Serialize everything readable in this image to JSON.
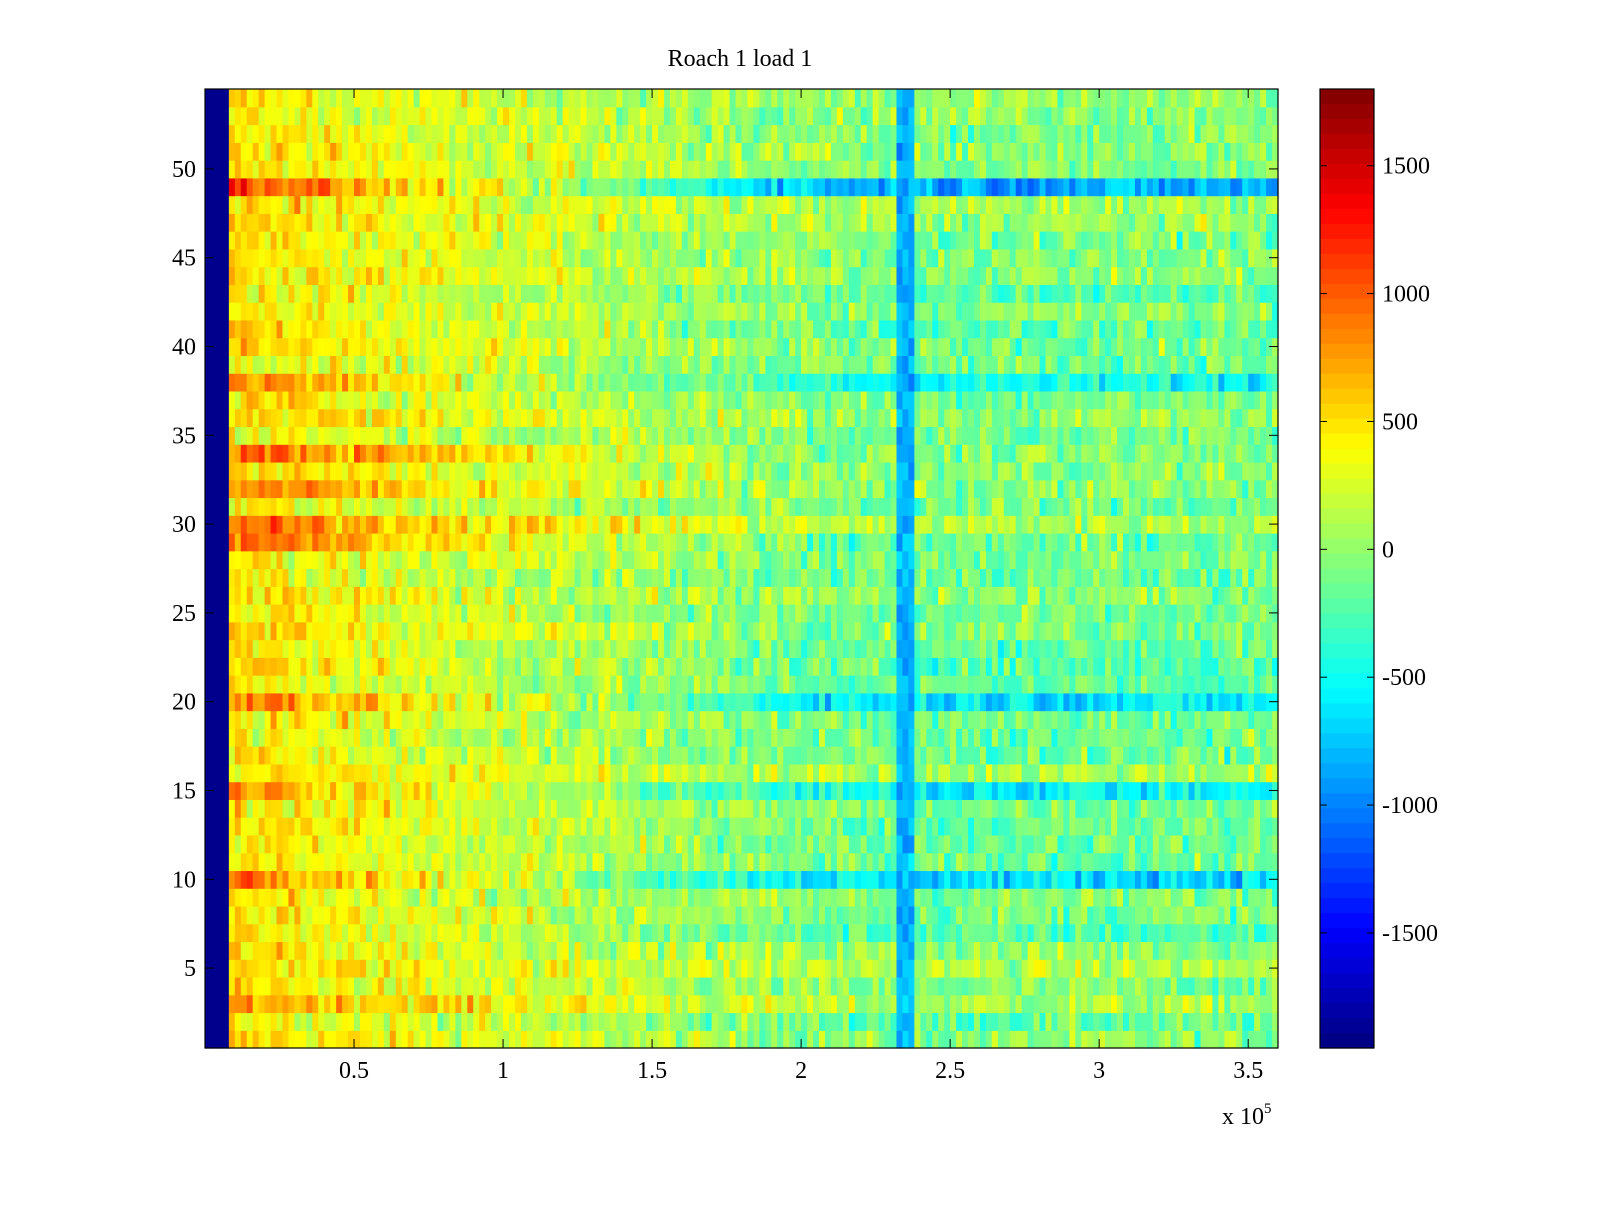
{
  "chart_data": {
    "type": "heatmap",
    "title": "Roach 1 load 1",
    "xlabel": "",
    "ylabel": "",
    "x_multiplier_label": {
      "base": "x 10",
      "exponent": "5"
    },
    "xlim": [
      0,
      3.6
    ],
    "x_scale_note": "values in units of 10^5",
    "ylim": [
      0.5,
      54.5
    ],
    "x_ticks": [
      0.5,
      1,
      1.5,
      2,
      2.5,
      3,
      3.5
    ],
    "x_tick_labels": [
      "0.5",
      "1",
      "1.5",
      "2",
      "2.5",
      "3",
      "3.5"
    ],
    "y_ticks": [
      5,
      10,
      15,
      20,
      25,
      30,
      35,
      40,
      45,
      50
    ],
    "y_tick_labels": [
      "5",
      "10",
      "15",
      "20",
      "25",
      "30",
      "35",
      "40",
      "45",
      "50"
    ],
    "rows": 54,
    "colorbar": {
      "colormap": "jet",
      "clim": [
        -1950,
        1800
      ],
      "ticks": [
        1500,
        1000,
        500,
        0,
        -500,
        -1000,
        -1500
      ],
      "tick_labels": [
        "1500",
        "1000",
        "500",
        "0",
        "-500",
        "-1000",
        "-1500"
      ]
    },
    "dark_edge_end_x": 0.08,
    "dark_edge_value": -1900,
    "stripe_column_x": 2.35,
    "stripe_value": -800,
    "row_profile_description": "Mean level per row decreases from left to right; selected rows are strongly elevated near the left edge.",
    "hot_rows": [
      {
        "row": 49,
        "left_value": 1400
      },
      {
        "row": 38,
        "left_value": 1050
      },
      {
        "row": 34,
        "left_value": 1100
      },
      {
        "row": 32,
        "left_value": 950
      },
      {
        "row": 30,
        "left_value": 1000
      },
      {
        "row": 29,
        "left_value": 1050
      },
      {
        "row": 20,
        "left_value": 1150
      },
      {
        "row": 15,
        "left_value": 1000
      },
      {
        "row": 10,
        "left_value": 1200
      },
      {
        "row": 3,
        "left_value": 850
      }
    ],
    "baseline_left_value": 550,
    "baseline_right_value": -100,
    "cool_right_rows": [
      {
        "row": 49,
        "right_value": -850
      },
      {
        "row": 38,
        "right_value": -500
      },
      {
        "row": 20,
        "right_value": -600
      },
      {
        "row": 15,
        "right_value": -550
      },
      {
        "row": 10,
        "right_value": -650
      }
    ]
  }
}
